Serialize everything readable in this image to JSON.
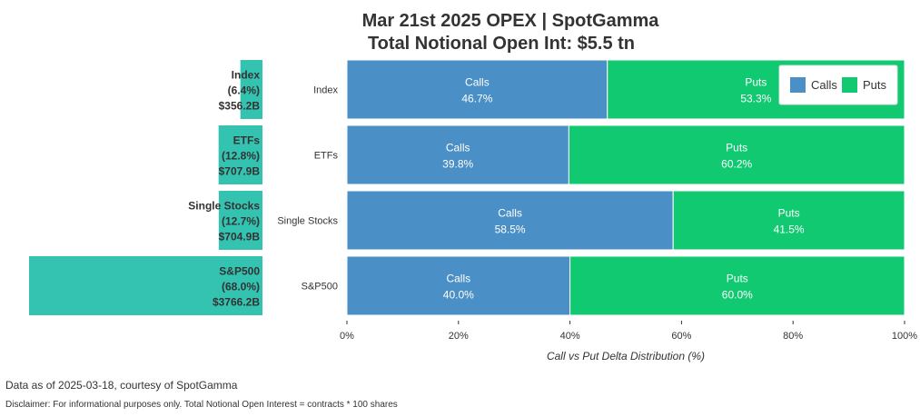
{
  "chart_data": {
    "type": "bar",
    "title_line1": "Mar 21st 2025 OPEX | SpotGamma",
    "title_line2": "Total Notional Open Int: $5.5 tn",
    "xlabel": "Call vs Put Delta Distribution (%)",
    "xlim": [
      0,
      100
    ],
    "x_ticks": [
      "0%",
      "20%",
      "40%",
      "60%",
      "80%",
      "100%"
    ],
    "categories": [
      "Index",
      "ETFs",
      "Single Stocks",
      "S&P500"
    ],
    "series": [
      {
        "name": "Calls",
        "values": [
          46.7,
          39.8,
          58.5,
          40.0
        ],
        "labels": [
          "46.7%",
          "39.8%",
          "58.5%",
          "40.0%"
        ],
        "color": "#4a8fc5"
      },
      {
        "name": "Puts",
        "values": [
          53.3,
          60.2,
          41.5,
          60.0
        ],
        "labels": [
          "53.3%",
          "60.2%",
          "41.5%",
          "60.0%"
        ],
        "color": "#11c971"
      }
    ],
    "legend_position": "top-right",
    "notional": {
      "color": "#34c3b1",
      "share_percent": [
        6.4,
        12.8,
        12.7,
        68.0
      ],
      "values_billion": [
        356.2,
        707.9,
        704.9,
        3766.2
      ],
      "share_labels": [
        "(6.4%)",
        "(12.8%)",
        "(12.7%)",
        "(68.0%)"
      ],
      "value_labels": [
        "$356.2B",
        "$707.9B",
        "$704.9B",
        "$3766.2B"
      ]
    }
  },
  "footer": {
    "source": "Data as of 2025-03-18, courtesy of SpotGamma",
    "disclaimer": "Disclaimer: For informational purposes only. Total Notional Open Interest = contracts * 100 shares"
  }
}
